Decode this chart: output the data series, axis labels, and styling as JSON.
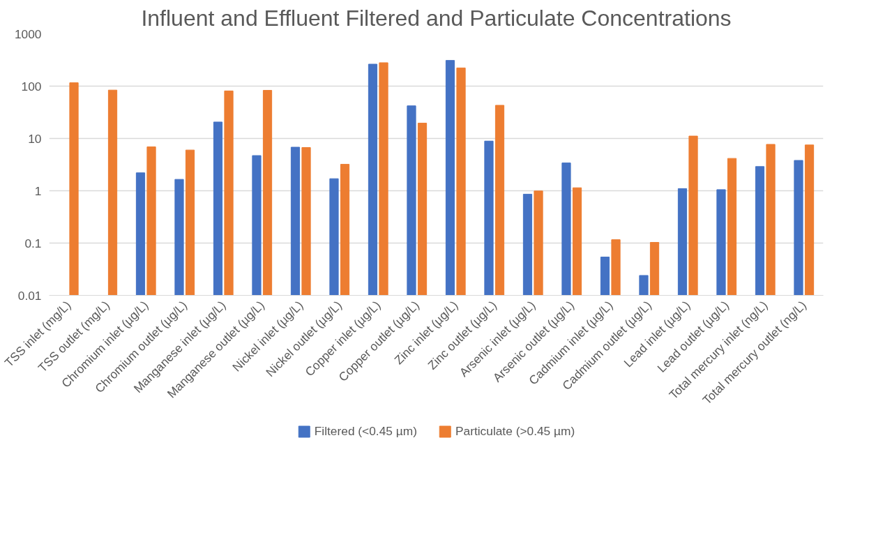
{
  "chart_data": {
    "type": "bar",
    "title": "Influent and Effluent Filtered and Particulate Concentrations",
    "categories": [
      "TSS inlet (mg/L)",
      "TSS outlet (mg/L)",
      "Chromium inlet (µg/L)",
      "Chromium outlet (µg/L)",
      "Manganese inlet (µg/L)",
      "Manganese outlet (µg/L)",
      "Nickel inlet (µg/L)",
      "Nickel outlet (µg/L)",
      "Copper inlet (µg/L)",
      "Copper outlet (µg/L)",
      "Zinc inlet (µg/L)",
      "Zinc outlet (µg/L)",
      "Arsenic inlet (µg/L)",
      "Arsenic outlet (µg/L)",
      "Cadmium inlet (µg/L)",
      "Cadmium outlet (µg/L)",
      "Lead inlet (µg/L)",
      "Lead outlet (µg/L)",
      "Total mercury inlet (ng/L)",
      "Total mercury outlet (ng/L)"
    ],
    "series": [
      {
        "name": "Filtered (<0.45 µm)",
        "color": "#4472c4",
        "values": [
          null,
          null,
          2.2,
          1.65,
          20.6,
          4.7,
          6.8,
          1.7,
          263,
          42,
          310,
          8.9,
          0.86,
          3.4,
          0.054,
          0.024,
          1.1,
          1.05,
          2.9,
          3.8
        ]
      },
      {
        "name": "Particulate (>0.45 µm)",
        "color": "#ed7d31",
        "values": [
          116,
          84,
          6.9,
          6.0,
          81,
          83,
          6.7,
          3.2,
          280,
          19.6,
          223,
          43,
          0.99,
          1.14,
          0.116,
          0.103,
          11.1,
          4.15,
          7.7,
          7.5
        ]
      }
    ],
    "log": true,
    "ylim": [
      0.01,
      1000
    ],
    "yticks": [
      0.01,
      0.1,
      1,
      10,
      100,
      1000
    ],
    "grid": "y",
    "legend": "bottom"
  }
}
